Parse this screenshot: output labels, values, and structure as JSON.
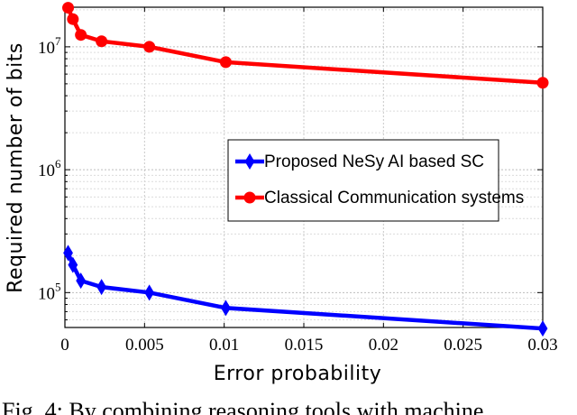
{
  "chart_data": {
    "type": "line",
    "xlabel": "Error probability",
    "ylabel": "Required number of bits",
    "xlim": [
      0,
      0.03
    ],
    "ylim": [
      52000,
      21000000
    ],
    "yscale": "log",
    "grid": true,
    "legend_position": "center-right",
    "x_ticks": [
      {
        "value": 0,
        "label": "0"
      },
      {
        "value": 0.005,
        "label": "0.005"
      },
      {
        "value": 0.01,
        "label": "0.01"
      },
      {
        "value": 0.015,
        "label": "0.015"
      },
      {
        "value": 0.02,
        "label": "0.02"
      },
      {
        "value": 0.025,
        "label": "0.025"
      },
      {
        "value": 0.03,
        "label": "0.03"
      }
    ],
    "y_ticks": [
      {
        "value": 100000,
        "base": "10",
        "exp": "5"
      },
      {
        "value": 1000000,
        "base": "10",
        "exp": "6"
      },
      {
        "value": 10000000,
        "base": "10",
        "exp": "7"
      }
    ],
    "series": [
      {
        "name": "Proposed NeSy AI based SC",
        "color": "#0000ff",
        "marker": "diamond",
        "points": [
          {
            "x": 0.0002,
            "y": 210000
          },
          {
            "x": 0.0005,
            "y": 168000
          },
          {
            "x": 0.001,
            "y": 125000
          },
          {
            "x": 0.0023,
            "y": 111000
          },
          {
            "x": 0.0053,
            "y": 100000
          },
          {
            "x": 0.0101,
            "y": 75000
          },
          {
            "x": 0.03,
            "y": 51000
          }
        ]
      },
      {
        "name": "Classical Communication systems",
        "color": "#ff0000",
        "marker": "circle",
        "points": [
          {
            "x": 0.0002,
            "y": 20800000
          },
          {
            "x": 0.0005,
            "y": 16800000
          },
          {
            "x": 0.001,
            "y": 12500000
          },
          {
            "x": 0.0023,
            "y": 11100000
          },
          {
            "x": 0.0053,
            "y": 10000000
          },
          {
            "x": 0.0101,
            "y": 7500000
          },
          {
            "x": 0.03,
            "y": 5100000
          }
        ]
      }
    ]
  },
  "caption": "Fig. 4: By combining reasoning tools with machine"
}
